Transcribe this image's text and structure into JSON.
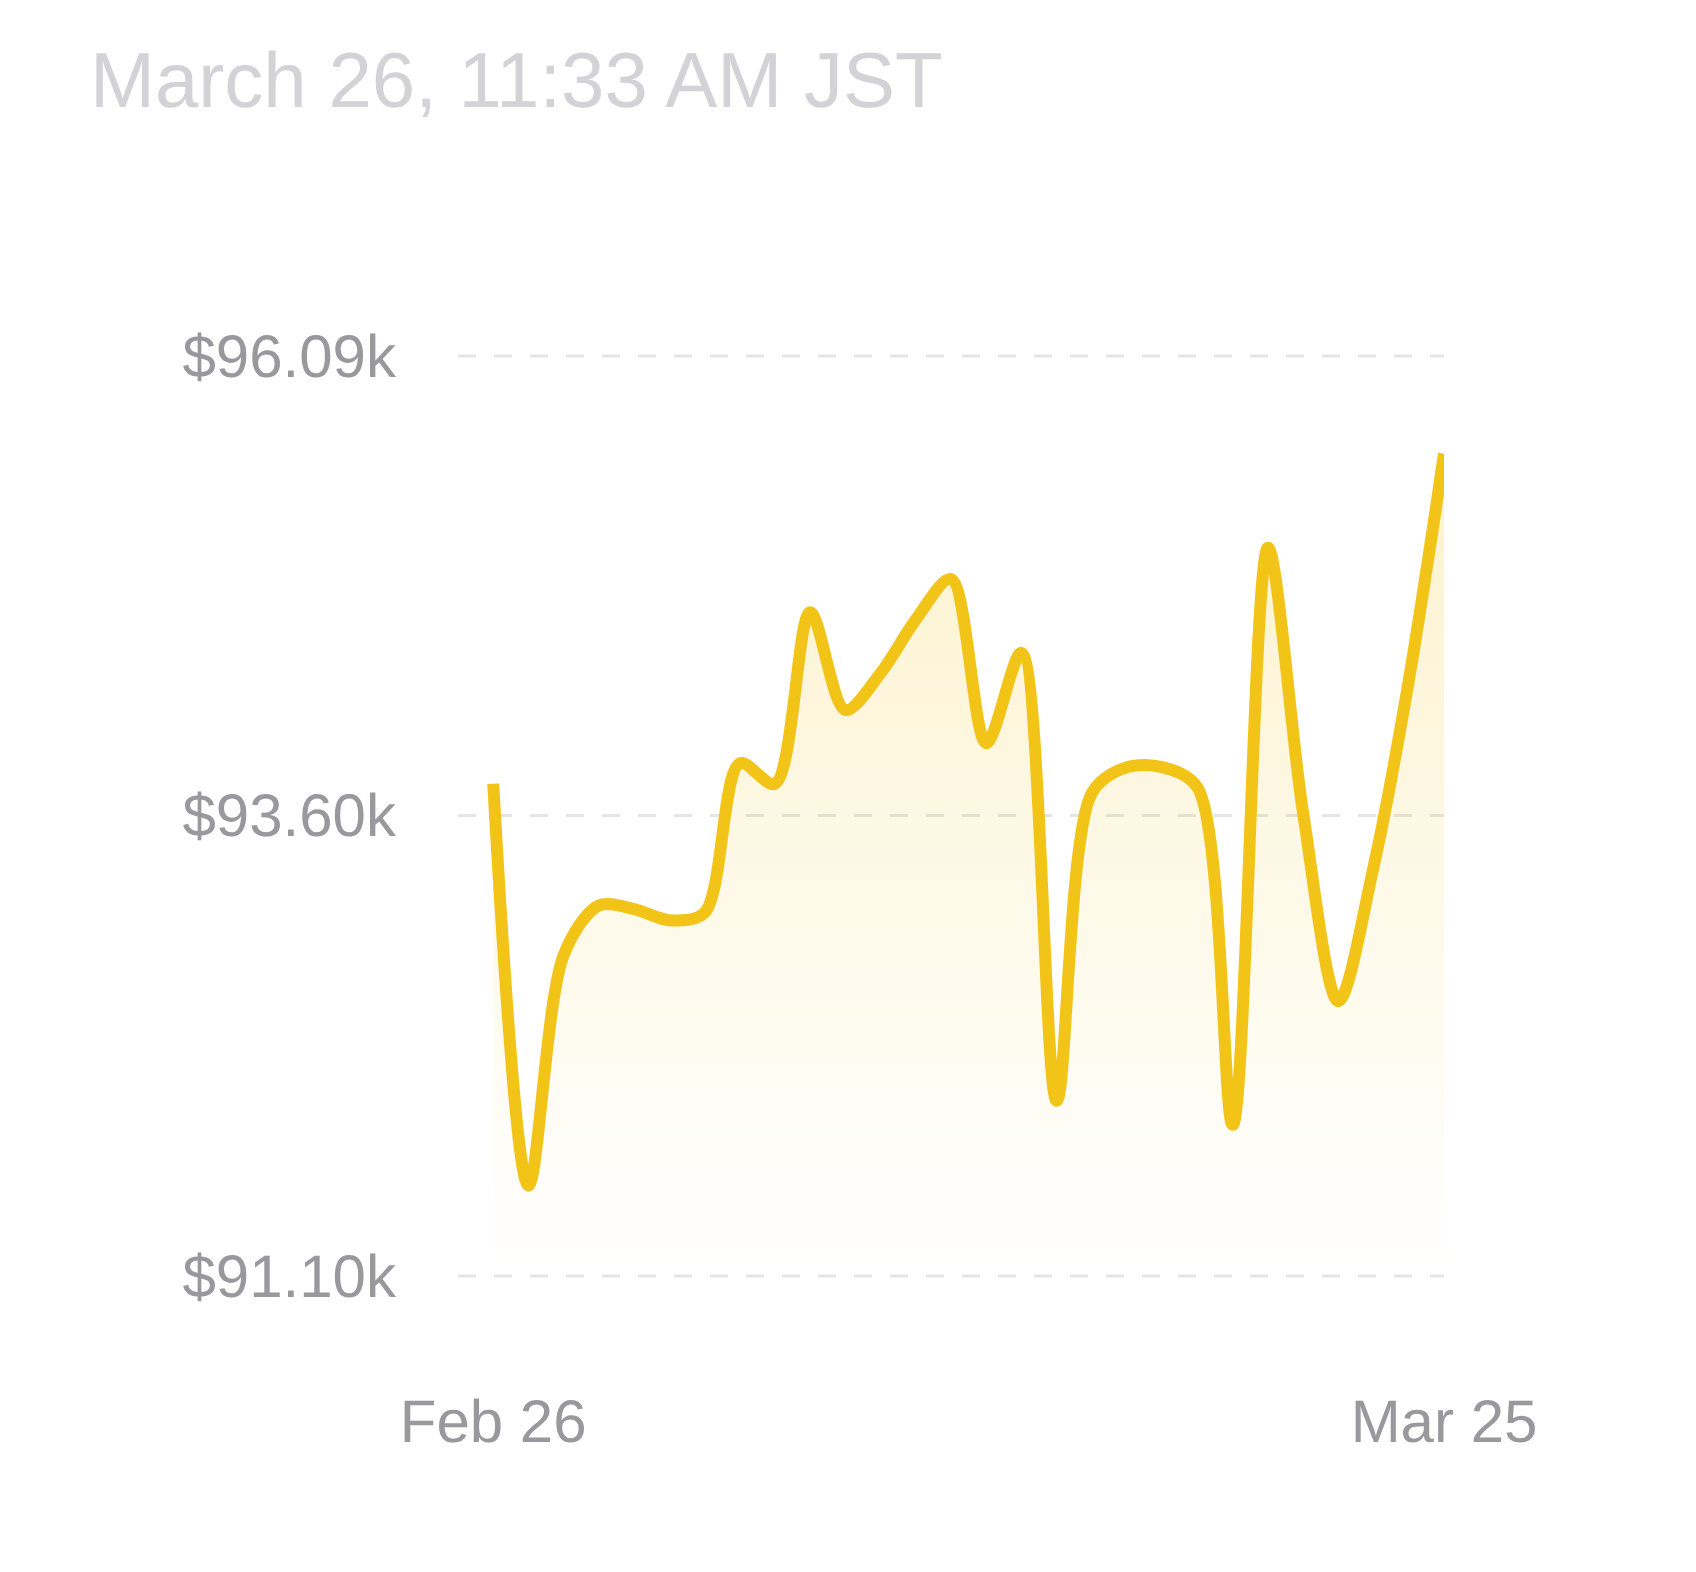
{
  "chart_data": {
    "type": "area",
    "title": "March 26, 11:33 AM JST",
    "x": [
      "--02-26",
      "--02-27",
      "--02-28",
      "--03-01",
      "--03-02",
      "--03-03",
      "--03-04",
      "--03-05",
      "--03-06",
      "--03-07",
      "--03-08",
      "--03-09",
      "--03-10",
      "--03-11",
      "--03-12",
      "--03-13",
      "--03-14",
      "--03-15",
      "--03-16",
      "--03-17",
      "--03-18",
      "--03-19",
      "--03-20",
      "--03-21",
      "--03-22",
      "--03-23",
      "--03-24",
      "--03-25"
    ],
    "values": [
      93.77,
      91.59,
      92.84,
      93.11,
      93.09,
      93.03,
      93.07,
      93.88,
      93.77,
      94.7,
      94.17,
      94.37,
      94.66,
      94.88,
      93.99,
      94.48,
      92.05,
      93.72,
      93.86,
      93.86,
      93.75,
      91.92,
      95.05,
      93.61,
      92.59,
      93.32,
      94.33,
      95.56
    ],
    "color": "#f2c418",
    "xlim": [
      "--02-25",
      "--03-25"
    ],
    "xticks": [
      {
        "value": "--02-26",
        "label": "Feb 26"
      },
      {
        "value": "--03-25",
        "label": "Mar 25"
      }
    ],
    "ylim": [
      91.1,
      96.09
    ],
    "yticks": [
      {
        "value": 91.1,
        "label": "$91.10k"
      },
      {
        "value": 93.6,
        "label": "$93.60k"
      },
      {
        "value": 96.09,
        "label": "$96.09k"
      }
    ],
    "grid": "y",
    "line_style": "solid"
  }
}
